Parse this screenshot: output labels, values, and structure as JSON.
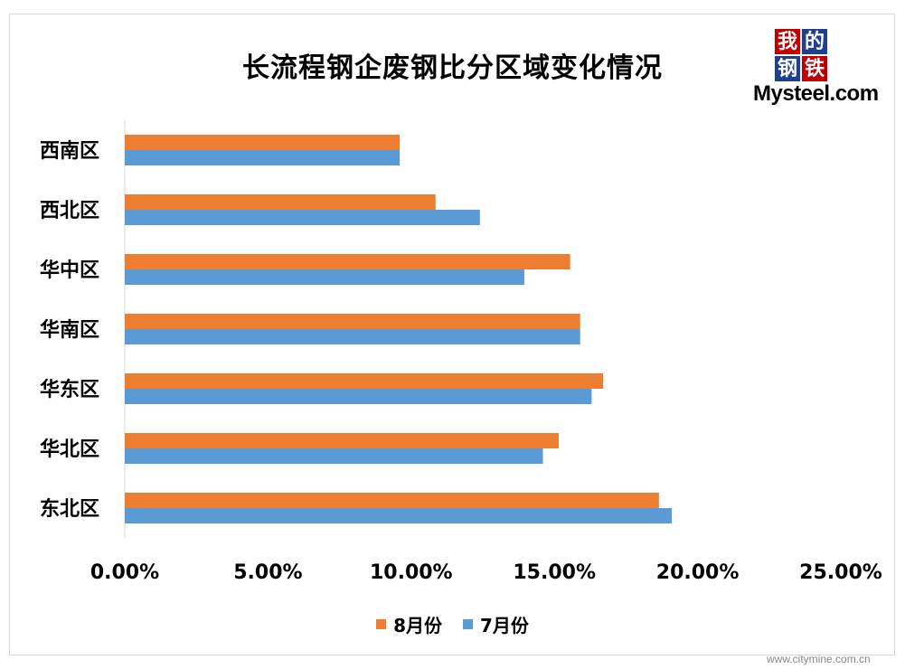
{
  "chart_data": {
    "type": "bar",
    "orientation": "horizontal",
    "title": "长流程钢企废钢比分区域变化情况",
    "categories": [
      "西南区",
      "西北区",
      "华中区",
      "华南区",
      "华东区",
      "华北区",
      "东北区"
    ],
    "series": [
      {
        "name": "8月份",
        "color": "#ed7d31",
        "values": [
          9.6,
          10.85,
          15.55,
          15.9,
          16.7,
          15.15,
          18.65
        ]
      },
      {
        "name": "7月份",
        "color": "#5b9bd5",
        "values": [
          9.6,
          12.4,
          13.95,
          15.9,
          16.3,
          14.6,
          19.1
        ]
      }
    ],
    "x_ticks": [
      "0.00%",
      "5.00%",
      "10.00%",
      "15.00%",
      "20.00%",
      "25.00%"
    ],
    "xlim": [
      0,
      25
    ],
    "grid": false,
    "legend_position": "bottom"
  },
  "logo": {
    "chars": [
      "我",
      "的",
      "钢",
      "铁"
    ],
    "box_colors": [
      "#c00000",
      "#1f3f8f",
      "#1f3f8f",
      "#c00000"
    ],
    "text": "Mysteel.com"
  },
  "watermark": "www.citymine.com.cn"
}
